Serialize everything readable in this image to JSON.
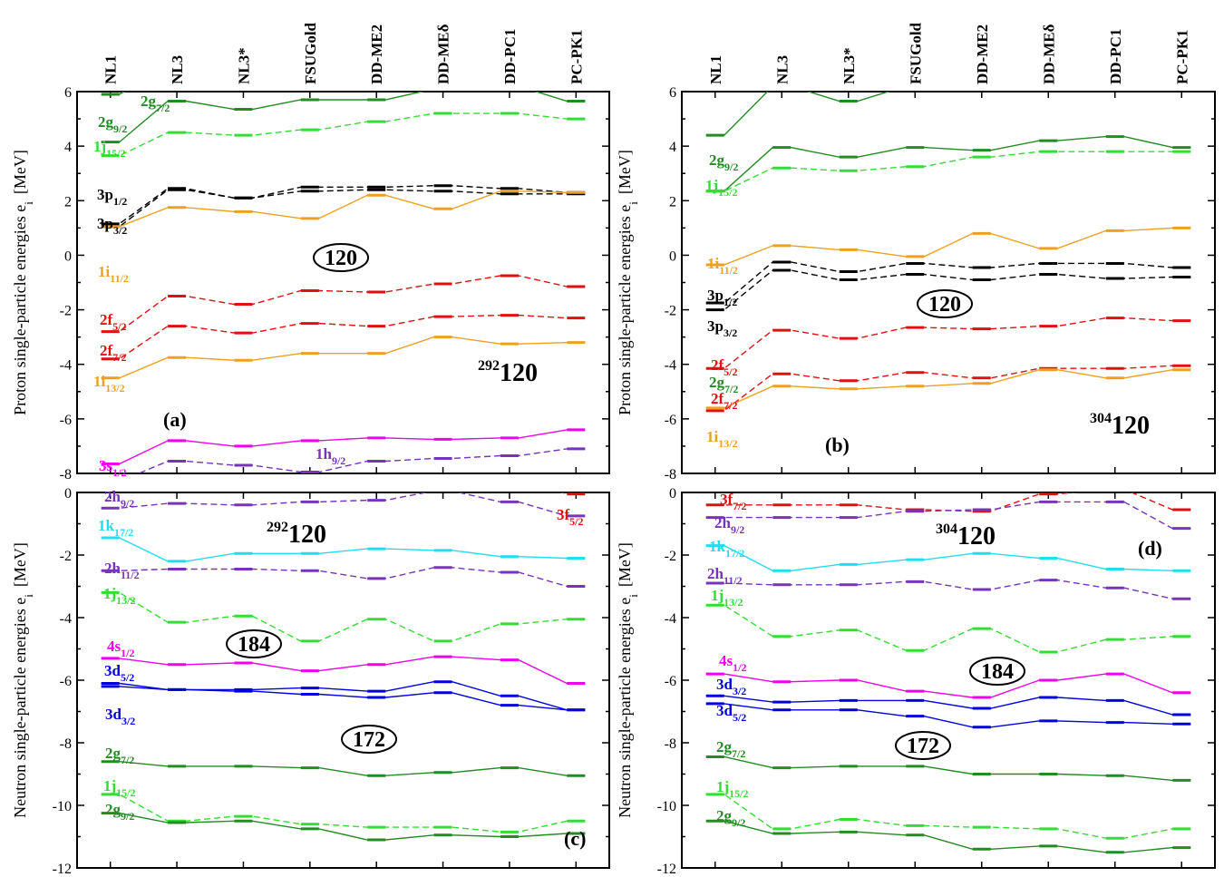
{
  "colors": {
    "green": "#228b22",
    "lime": "#33dd33",
    "black": "#000000",
    "orange": "#f0a020",
    "red": "#e01010",
    "magenta": "#ee00ee",
    "purple": "#7733bb",
    "cyan": "#22ddee",
    "blue": "#0000dd"
  },
  "chart_data": [
    {
      "id": "a",
      "panel_label": "(a)",
      "type": "line",
      "models": [
        "NL1",
        "NL3",
        "NL3*",
        "FSUGold",
        "DD-ME2",
        "DD-MEδ",
        "DD-PC1",
        "PC-PK1"
      ],
      "ylabel": "Proton single-particle energies e",
      "ylabel_sub": "i",
      "ylabel_unit": "[MeV]",
      "ylim": [
        -8,
        6
      ],
      "yticks": [
        "-8",
        "-6",
        "-4",
        "-2",
        "0",
        "2",
        "4",
        "6"
      ],
      "nucleus_mass": "292",
      "nucleus_z": "120",
      "magic_numbers": [
        "120"
      ],
      "series": [
        {
          "label": "2g",
          "sub": "7/2",
          "color": "green",
          "dash": false,
          "values": [
            5.9,
            7.0,
            7.0,
            7.0,
            7.0,
            7.0,
            7.0,
            7.0
          ]
        },
        {
          "label": "2g",
          "sub": "9/2",
          "color": "green",
          "dash": false,
          "values": [
            4.15,
            5.65,
            5.35,
            5.7,
            5.7,
            6.1,
            6.2,
            5.65
          ]
        },
        {
          "label": "1j",
          "sub": "15/2",
          "color": "lime",
          "dash": true,
          "values": [
            3.65,
            4.5,
            4.4,
            4.6,
            4.9,
            5.2,
            5.2,
            5.0
          ]
        },
        {
          "label": "3p",
          "sub": "1/2",
          "color": "black",
          "dash": true,
          "values": [
            1.15,
            2.45,
            2.1,
            2.5,
            2.5,
            2.55,
            2.45,
            2.3
          ]
        },
        {
          "label": "3p",
          "sub": "3/2",
          "color": "black",
          "dash": true,
          "values": [
            1.05,
            2.4,
            2.1,
            2.35,
            2.4,
            2.35,
            2.25,
            2.25
          ]
        },
        {
          "label": "1i",
          "sub": "11/2",
          "color": "orange",
          "dash": false,
          "values": [
            1.05,
            1.75,
            1.6,
            1.35,
            2.2,
            1.7,
            2.35,
            2.3
          ]
        },
        {
          "label": "2f",
          "sub": "5/2",
          "color": "red",
          "dash": true,
          "values": [
            -2.8,
            -1.5,
            -1.8,
            -1.3,
            -1.35,
            -1.05,
            -0.75,
            -1.15
          ]
        },
        {
          "label": "2f",
          "sub": "7/2",
          "color": "red",
          "dash": true,
          "values": [
            -3.8,
            -2.6,
            -2.85,
            -2.5,
            -2.6,
            -2.25,
            -2.2,
            -2.3
          ]
        },
        {
          "label": "1i",
          "sub": "13/2",
          "color": "orange",
          "dash": false,
          "values": [
            -4.5,
            -3.75,
            -3.85,
            -3.6,
            -3.6,
            -3.0,
            -3.25,
            -3.2
          ]
        },
        {
          "label": "3s",
          "sub": "1/2",
          "color": "magenta",
          "dash": false,
          "values": [
            -7.65,
            -6.8,
            -7.0,
            -6.8,
            -6.7,
            -6.75,
            -6.7,
            -6.4
          ]
        },
        {
          "label": "1h",
          "sub": "9/2",
          "color": "purple",
          "dash": true,
          "values": [
            -8.3,
            -7.55,
            -7.7,
            -7.95,
            -7.55,
            -7.45,
            -7.35,
            -7.1
          ]
        }
      ]
    },
    {
      "id": "b",
      "panel_label": "(b)",
      "type": "line",
      "models": [
        "NL1",
        "NL3",
        "NL3*",
        "FSUGold",
        "DD-ME2",
        "DD-MEδ",
        "DD-PC1",
        "PC-PK1"
      ],
      "ylabel": "Proton single-particle energies e",
      "ylabel_sub": "i",
      "ylabel_unit": "[MeV]",
      "ylim": [
        -8,
        6
      ],
      "yticks": [
        "-8",
        "-6",
        "-4",
        "-2",
        "0",
        "2",
        "4",
        "6"
      ],
      "nucleus_mass": "304",
      "nucleus_z": "120",
      "magic_numbers": [
        "120"
      ],
      "series": [
        {
          "label": "2g",
          "sub": "7/2",
          "color": "green",
          "dash": false,
          "values": [
            4.4,
            6.2,
            5.65,
            6.2,
            7.0,
            7.0,
            7.0,
            7.0
          ]
        },
        {
          "label": "2g",
          "sub": "9/2",
          "color": "green",
          "dash": false,
          "values": [
            2.35,
            3.95,
            3.6,
            3.95,
            3.85,
            4.2,
            4.35,
            3.95
          ]
        },
        {
          "label": "1j",
          "sub": "15/2",
          "color": "lime",
          "dash": true,
          "values": [
            2.35,
            3.2,
            3.1,
            3.25,
            3.6,
            3.8,
            3.8,
            3.8
          ]
        },
        {
          "label": "1i",
          "sub": "11/2",
          "color": "orange",
          "dash": false,
          "values": [
            -0.35,
            0.35,
            0.2,
            -0.05,
            0.8,
            0.25,
            0.9,
            1.0
          ]
        },
        {
          "label": "3p",
          "sub": "1/2",
          "color": "black",
          "dash": true,
          "values": [
            -1.75,
            -0.25,
            -0.6,
            -0.3,
            -0.45,
            -0.3,
            -0.3,
            -0.45
          ]
        },
        {
          "label": "3p",
          "sub": "3/2",
          "color": "black",
          "dash": true,
          "values": [
            -2.0,
            -0.55,
            -0.9,
            -0.7,
            -0.9,
            -0.7,
            -0.85,
            -0.8
          ]
        },
        {
          "label": "2f",
          "sub": "5/2",
          "color": "red",
          "dash": true,
          "values": [
            -4.15,
            -2.75,
            -3.05,
            -2.65,
            -2.7,
            -2.6,
            -2.3,
            -2.4
          ]
        },
        {
          "label": "2f",
          "sub": "7/2",
          "color": "red",
          "dash": true,
          "values": [
            -5.7,
            -4.35,
            -4.6,
            -4.3,
            -4.5,
            -4.15,
            -4.15,
            -4.05
          ]
        },
        {
          "label": "1i",
          "sub": "13/2",
          "color": "orange",
          "dash": false,
          "values": [
            -5.6,
            -4.8,
            -4.9,
            -4.8,
            -4.7,
            -4.2,
            -4.5,
            -4.2
          ]
        }
      ]
    },
    {
      "id": "c",
      "panel_label": "(c)",
      "type": "line",
      "models": [
        "NL1",
        "NL3",
        "NL3*",
        "FSUGold",
        "DD-ME2",
        "DD-MEδ",
        "DD-PC1",
        "PC-PK1"
      ],
      "ylabel": "Neutron single-particle energies e",
      "ylabel_sub": "i",
      "ylabel_unit": "[MeV]",
      "ylim": [
        -12,
        0
      ],
      "yticks": [
        "-12",
        "-10",
        "-8",
        "-6",
        "-4",
        "-2",
        "0"
      ],
      "nucleus_mass": "292",
      "nucleus_z": "120",
      "magic_numbers": [
        "184",
        "172"
      ],
      "series": [
        {
          "label": "3f",
          "sub": "5/2",
          "color": "red",
          "dash": true,
          "values": [
            0.5,
            0.5,
            0.5,
            0.5,
            0.5,
            0.5,
            0.4,
            -0.05
          ]
        },
        {
          "label": "2h",
          "sub": "9/2",
          "color": "purple",
          "dash": true,
          "values": [
            -0.5,
            -0.35,
            -0.4,
            -0.3,
            -0.25,
            0.05,
            -0.3,
            -0.75
          ]
        },
        {
          "label": "1k",
          "sub": "17/2",
          "color": "cyan",
          "dash": false,
          "values": [
            -1.45,
            -2.2,
            -1.95,
            -1.95,
            -1.8,
            -1.85,
            -2.05,
            -2.1
          ]
        },
        {
          "label": "2h",
          "sub": "11/2",
          "color": "purple",
          "dash": true,
          "values": [
            -2.5,
            -2.45,
            -2.45,
            -2.5,
            -2.75,
            -2.4,
            -2.55,
            -3.0
          ]
        },
        {
          "label": "1j",
          "sub": "13/2",
          "color": "lime",
          "dash": true,
          "values": [
            -3.2,
            -4.15,
            -3.95,
            -4.75,
            -4.05,
            -4.75,
            -4.2,
            -4.05
          ]
        },
        {
          "label": "4s",
          "sub": "1/2",
          "color": "magenta",
          "dash": false,
          "values": [
            -5.3,
            -5.5,
            -5.45,
            -5.7,
            -5.5,
            -5.25,
            -5.35,
            -6.1
          ]
        },
        {
          "label": "3d",
          "sub": "5/2",
          "color": "blue",
          "dash": false,
          "values": [
            -6.1,
            -6.3,
            -6.3,
            -6.25,
            -6.35,
            -6.05,
            -6.5,
            -6.95
          ]
        },
        {
          "label": "3d",
          "sub": "3/2",
          "color": "blue",
          "dash": false,
          "values": [
            -6.2,
            -6.3,
            -6.35,
            -6.45,
            -6.55,
            -6.4,
            -6.8,
            -6.95
          ]
        },
        {
          "label": "2g",
          "sub": "7/2",
          "color": "green",
          "dash": false,
          "values": [
            -8.6,
            -8.75,
            -8.75,
            -8.8,
            -9.05,
            -8.95,
            -8.8,
            -9.05
          ]
        },
        {
          "label": "1j",
          "sub": "15/2",
          "color": "lime",
          "dash": true,
          "values": [
            -9.65,
            -10.5,
            -10.35,
            -10.6,
            -10.7,
            -10.7,
            -10.85,
            -10.5
          ]
        },
        {
          "label": "2g",
          "sub": "9/2",
          "color": "green",
          "dash": false,
          "values": [
            -10.25,
            -10.55,
            -10.5,
            -10.75,
            -11.1,
            -10.95,
            -11.0,
            -10.9
          ]
        }
      ]
    },
    {
      "id": "d",
      "panel_label": "(d)",
      "type": "line",
      "models": [
        "NL1",
        "NL3",
        "NL3*",
        "FSUGold",
        "DD-ME2",
        "DD-MEδ",
        "DD-PC1",
        "PC-PK1"
      ],
      "ylabel": "Neutron single-particle energies e",
      "ylabel_sub": "i",
      "ylabel_unit": "[MeV]",
      "ylim": [
        -12,
        0
      ],
      "yticks": [
        "-12",
        "-10",
        "-8",
        "-6",
        "-4",
        "-2",
        "0"
      ],
      "nucleus_mass": "304",
      "nucleus_z": "120",
      "magic_numbers": [
        "184",
        "172"
      ],
      "series": [
        {
          "label": "3f",
          "sub": "7/2",
          "color": "red",
          "dash": true,
          "values": [
            -0.4,
            -0.4,
            -0.4,
            -0.55,
            -0.6,
            -0.05,
            0.1,
            -0.55
          ]
        },
        {
          "label": "2h",
          "sub": "9/2",
          "color": "purple",
          "dash": true,
          "values": [
            -0.8,
            -0.8,
            -0.8,
            -0.6,
            -0.55,
            -0.3,
            -0.3,
            -1.15
          ]
        },
        {
          "label": "1k",
          "sub": "17/2",
          "color": "cyan",
          "dash": false,
          "values": [
            -1.7,
            -2.5,
            -2.3,
            -2.15,
            -1.95,
            -2.1,
            -2.45,
            -2.5
          ]
        },
        {
          "label": "2h",
          "sub": "11/2",
          "color": "purple",
          "dash": true,
          "values": [
            -2.9,
            -2.95,
            -2.95,
            -2.85,
            -3.1,
            -2.8,
            -3.05,
            -3.4
          ]
        },
        {
          "label": "1j",
          "sub": "13/2",
          "color": "lime",
          "dash": true,
          "values": [
            -3.6,
            -4.6,
            -4.4,
            -5.05,
            -4.35,
            -5.1,
            -4.7,
            -4.6
          ]
        },
        {
          "label": "4s",
          "sub": "1/2",
          "color": "magenta",
          "dash": false,
          "values": [
            -5.8,
            -6.05,
            -6.0,
            -6.35,
            -6.55,
            -6.0,
            -5.8,
            -6.4
          ]
        },
        {
          "label": "3d",
          "sub": "3/2",
          "color": "blue",
          "dash": false,
          "values": [
            -6.5,
            -6.7,
            -6.65,
            -6.65,
            -6.9,
            -6.55,
            -6.65,
            -7.1
          ]
        },
        {
          "label": "3d",
          "sub": "5/2",
          "color": "blue",
          "dash": false,
          "values": [
            -6.75,
            -6.95,
            -6.95,
            -7.15,
            -7.5,
            -7.3,
            -7.35,
            -7.4
          ]
        },
        {
          "label": "2g",
          "sub": "7/2",
          "color": "green",
          "dash": false,
          "values": [
            -8.45,
            -8.8,
            -8.75,
            -8.75,
            -9.0,
            -9.0,
            -9.05,
            -9.2
          ]
        },
        {
          "label": "1j",
          "sub": "15/2",
          "color": "lime",
          "dash": true,
          "values": [
            -9.65,
            -10.75,
            -10.45,
            -10.65,
            -10.7,
            -10.75,
            -11.05,
            -10.75
          ]
        },
        {
          "label": "2g",
          "sub": "9/2",
          "color": "green",
          "dash": false,
          "values": [
            -10.5,
            -10.9,
            -10.85,
            -10.95,
            -11.4,
            -11.3,
            -11.5,
            -11.35
          ]
        }
      ]
    }
  ]
}
